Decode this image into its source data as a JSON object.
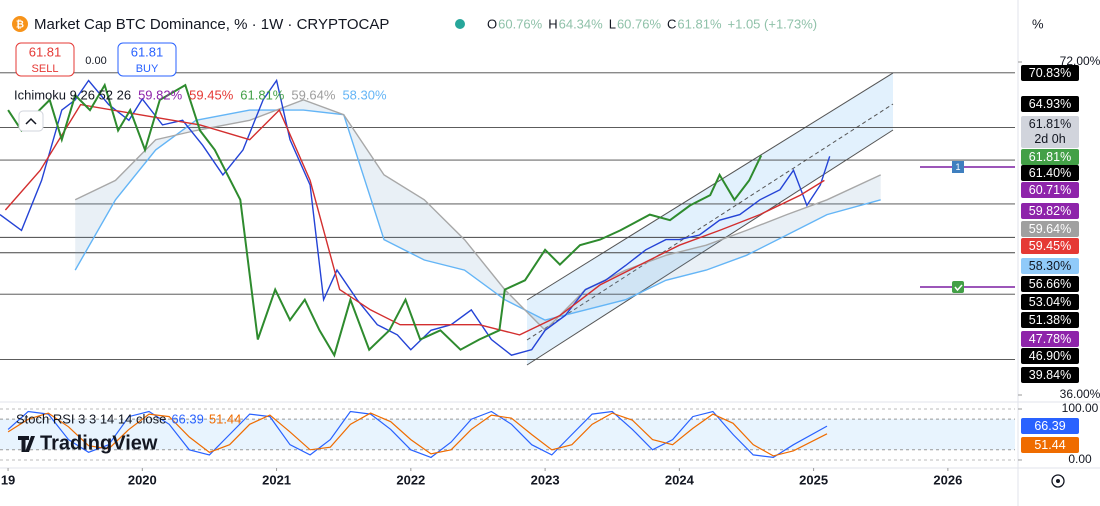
{
  "header": {
    "title": "Market Cap BTC Dominance, % · 1W · CRYPTOCAP",
    "ohlc": [
      {
        "key": "O",
        "value": "60.76%"
      },
      {
        "key": "H",
        "value": "64.34%"
      },
      {
        "key": "L",
        "value": "60.76%"
      },
      {
        "key": "C",
        "value": "61.81%"
      }
    ],
    "change": "+1.05 (+1.73%)",
    "unit": "%",
    "sell": {
      "price": "61.81",
      "label": "SELL"
    },
    "spread": "0.00",
    "buy": {
      "price": "61.81",
      "label": "BUY"
    },
    "logo": "TradingView"
  },
  "chart_data": [
    {
      "type": "line",
      "legend": {
        "title": "Ichimoku 9 26 52 26",
        "values": [
          {
            "label": "59.82%",
            "color": "#8e24aa"
          },
          {
            "label": "59.45%",
            "color": "#e53935"
          },
          {
            "label": "61.81%",
            "color": "#43a047"
          },
          {
            "label": "59.64%",
            "color": "#9e9e9e"
          },
          {
            "label": "58.30%",
            "color": "#64b5f6"
          }
        ]
      },
      "xlim": [
        2018.94,
        2026.5
      ],
      "xticks": [
        {
          "value": 2019,
          "label": "19"
        },
        2020,
        2021,
        2022,
        2023,
        2024,
        2025,
        2026
      ],
      "ylim": [
        35.46,
        76.0
      ],
      "yticks": [
        {
          "value": 72,
          "label": "72.00%"
        },
        {
          "value": 36,
          "label": "36.00%"
        }
      ],
      "levels": [
        {
          "value": 70.83,
          "label": "70.83%"
        },
        {
          "value": 64.93,
          "label": "64.93%"
        },
        {
          "value": 61.4,
          "label": "61.40%"
        },
        {
          "value": 56.66,
          "label": "56.66%"
        },
        {
          "value": 53.04,
          "label": "53.04%"
        },
        {
          "value": 51.38,
          "label": "51.38%"
        },
        {
          "value": 46.9,
          "label": "46.90%"
        },
        {
          "value": 39.84,
          "label": "39.84%"
        }
      ],
      "badges": [
        {
          "label": "61.81%",
          "sub": "2d 0h",
          "color": "#d1d4dc"
        },
        {
          "label": "61.81%",
          "color": "#43a047"
        },
        {
          "label": "60.71%",
          "color": "#8e24aa"
        },
        {
          "label": "59.82%",
          "color": "#8e24aa"
        },
        {
          "label": "59.64%",
          "color": "#a0a0a0"
        },
        {
          "label": "59.45%",
          "color": "#e53935"
        },
        {
          "label": "58.30%",
          "color": "#90caf9"
        },
        {
          "label": "47.78%",
          "color": "#8e24aa"
        }
      ],
      "series": [
        {
          "color": "#2443d6",
          "x": [
            2018.94,
            2019.1,
            2019.25,
            2019.4,
            2019.5,
            2019.6,
            2019.75,
            2019.9,
            2020.0,
            2020.15,
            2020.3,
            2020.45,
            2020.6,
            2020.75,
            2020.9,
            2021.0,
            2021.1,
            2021.25,
            2021.35,
            2021.45,
            2021.6,
            2021.75,
            2021.9,
            2022.0,
            2022.15,
            2022.3,
            2022.45,
            2022.6,
            2022.75,
            2022.9,
            2023.0,
            2023.15,
            2023.3,
            2023.45,
            2023.6,
            2023.75,
            2023.9,
            2024.0,
            2024.15,
            2024.3,
            2024.45,
            2024.6,
            2024.75,
            2024.85,
            2024.95,
            2025.05,
            2025.12
          ],
          "values": [
            55.5,
            53.8,
            59.2,
            66.8,
            67.9,
            70,
            67.4,
            65.7,
            68,
            65.2,
            65.7,
            63,
            59.8,
            62.5,
            67.9,
            70,
            63.6,
            58.7,
            46.3,
            49.5,
            46.3,
            43.6,
            42.5,
            40.9,
            43,
            43.6,
            45.2,
            42,
            40.3,
            40.9,
            43,
            44.6,
            47.4,
            48.4,
            50,
            51.7,
            52.8,
            52.8,
            53.3,
            54.9,
            55.5,
            57.1,
            58.2,
            60.3,
            56.5,
            58.7,
            61.81
          ]
        },
        {
          "color": "#d32f2f",
          "x": [
            2018.98,
            2019.24,
            2019.54,
            2019.98,
            2020.43,
            2020.8,
            2021.02,
            2021.25,
            2021.47,
            2021.7,
            2021.92,
            2022.22,
            2022.51,
            2022.81,
            2023.11,
            2023.41,
            2023.71,
            2024.0,
            2024.3,
            2024.6,
            2024.9,
            2025.08
          ],
          "values": [
            56,
            60.3,
            67.4,
            66.3,
            65.2,
            63.6,
            66.8,
            59.2,
            47.4,
            45.2,
            43.6,
            43.6,
            43.6,
            42.5,
            44.6,
            47.9,
            50.1,
            52.2,
            53.8,
            55.5,
            57.6,
            59.2
          ]
        },
        {
          "color": "#2e8b2e",
          "x": [
            2019.0,
            2019.1,
            2019.2,
            2019.31,
            2019.4,
            2019.5,
            2019.61,
            2019.72,
            2019.82,
            2019.91,
            2020.02,
            2020.13,
            2020.32,
            2020.43,
            2020.54,
            2020.73,
            2020.86,
            2020.99,
            2021.1,
            2021.21,
            2021.32,
            2021.43,
            2021.55,
            2021.69,
            2021.84,
            2021.96,
            2022.07,
            2022.22,
            2022.37,
            2022.51,
            2022.66,
            2022.7,
            2022.85,
            2023.0,
            2023.11,
            2023.26,
            2023.41,
            2023.56,
            2023.78,
            2023.93,
            2024.08,
            2024.23,
            2024.3,
            2024.41,
            2024.52,
            2024.61
          ],
          "values": [
            66.8,
            64.6,
            66.3,
            67.9,
            63.6,
            68.4,
            66.8,
            69.5,
            64.6,
            66.8,
            62.5,
            67.9,
            69.5,
            64.6,
            62.5,
            57.1,
            42,
            47.4,
            44.1,
            46.3,
            43,
            40.3,
            46.3,
            40.9,
            43,
            46.3,
            42,
            43,
            40.9,
            42,
            43,
            47.4,
            48.4,
            51.7,
            50.1,
            52.2,
            52.8,
            53.8,
            55.5,
            54.9,
            56.5,
            57.6,
            59.8,
            57.1,
            59.2,
            61.9
          ]
        },
        {
          "color": "#64b5f6",
          "x": [
            2019.5,
            2019.8,
            2020.1,
            2020.4,
            2020.8,
            2021.2,
            2021.5,
            2021.8,
            2022.1,
            2022.4,
            2022.7,
            2023.0,
            2023.3,
            2023.6,
            2023.9,
            2024.2,
            2024.5,
            2024.8,
            2025.1,
            2025.5
          ],
          "values": [
            49.5,
            57.1,
            62.5,
            65.7,
            66.8,
            66.8,
            66.3,
            52.8,
            50.6,
            49.5,
            46.3,
            44.1,
            45.2,
            46.3,
            48.4,
            49.5,
            51.1,
            53.3,
            55.5,
            57.1
          ]
        },
        {
          "color": "#a8a8a8",
          "x": [
            2019.5,
            2019.8,
            2020.1,
            2020.4,
            2020.8,
            2021.2,
            2021.5,
            2021.8,
            2022.1,
            2022.4,
            2022.7,
            2023.0,
            2023.3,
            2023.6,
            2023.9,
            2024.2,
            2024.5,
            2024.8,
            2025.1,
            2025.5
          ],
          "values": [
            57.1,
            59.2,
            63.6,
            64.6,
            65.7,
            67.9,
            66.3,
            59.8,
            57.1,
            52.8,
            47.4,
            43,
            47.4,
            49.5,
            51.1,
            52.2,
            53.8,
            55.5,
            57.1,
            59.8
          ]
        }
      ]
    },
    {
      "type": "line",
      "title": "Stoch RSI 3 3 14 14 close",
      "xlim": [
        2018.94,
        2026.5
      ],
      "ylim": [
        -11.8,
        113.7
      ],
      "yticks": [
        {
          "value": 100,
          "label": "100.00"
        },
        {
          "value": 0,
          "label": "0.00"
        }
      ],
      "bands": [
        80,
        20
      ],
      "series": [
        {
          "color": "#2962ff",
          "x": [
            2019,
            2019.15,
            2019.3,
            2019.45,
            2019.6,
            2019.75,
            2019.9,
            2020.05,
            2020.2,
            2020.35,
            2020.5,
            2020.65,
            2020.8,
            2020.95,
            2021.1,
            2021.25,
            2021.4,
            2021.55,
            2021.7,
            2021.85,
            2022,
            2022.15,
            2022.3,
            2022.45,
            2022.6,
            2022.75,
            2022.9,
            2023.05,
            2023.2,
            2023.35,
            2023.5,
            2023.65,
            2023.8,
            2023.95,
            2024.1,
            2024.25,
            2024.4,
            2024.55,
            2024.7,
            2024.85,
            2025.1
          ],
          "values": [
            60,
            95,
            90,
            40,
            15,
            30,
            85,
            95,
            70,
            20,
            10,
            50,
            90,
            85,
            30,
            10,
            40,
            95,
            90,
            60,
            20,
            5,
            35,
            80,
            95,
            70,
            30,
            10,
            50,
            90,
            95,
            60,
            20,
            40,
            85,
            95,
            50,
            10,
            5,
            30,
            66.39
          ]
        },
        {
          "color": "#ef6c00",
          "x": [
            2019,
            2019.15,
            2019.3,
            2019.45,
            2019.6,
            2019.75,
            2019.9,
            2020.05,
            2020.2,
            2020.35,
            2020.5,
            2020.65,
            2020.8,
            2020.95,
            2021.1,
            2021.25,
            2021.4,
            2021.55,
            2021.7,
            2021.85,
            2022,
            2022.15,
            2022.3,
            2022.45,
            2022.6,
            2022.75,
            2022.9,
            2023.05,
            2023.2,
            2023.35,
            2023.5,
            2023.65,
            2023.8,
            2023.95,
            2024.1,
            2024.25,
            2024.4,
            2024.55,
            2024.7,
            2024.85,
            2025.1
          ],
          "values": [
            55,
            80,
            92,
            65,
            28,
            22,
            60,
            90,
            85,
            45,
            15,
            30,
            70,
            88,
            55,
            20,
            25,
            70,
            92,
            75,
            40,
            12,
            20,
            60,
            88,
            82,
            50,
            20,
            30,
            70,
            92,
            78,
            40,
            30,
            62,
            90,
            72,
            30,
            8,
            18,
            51.44
          ]
        }
      ]
    }
  ]
}
